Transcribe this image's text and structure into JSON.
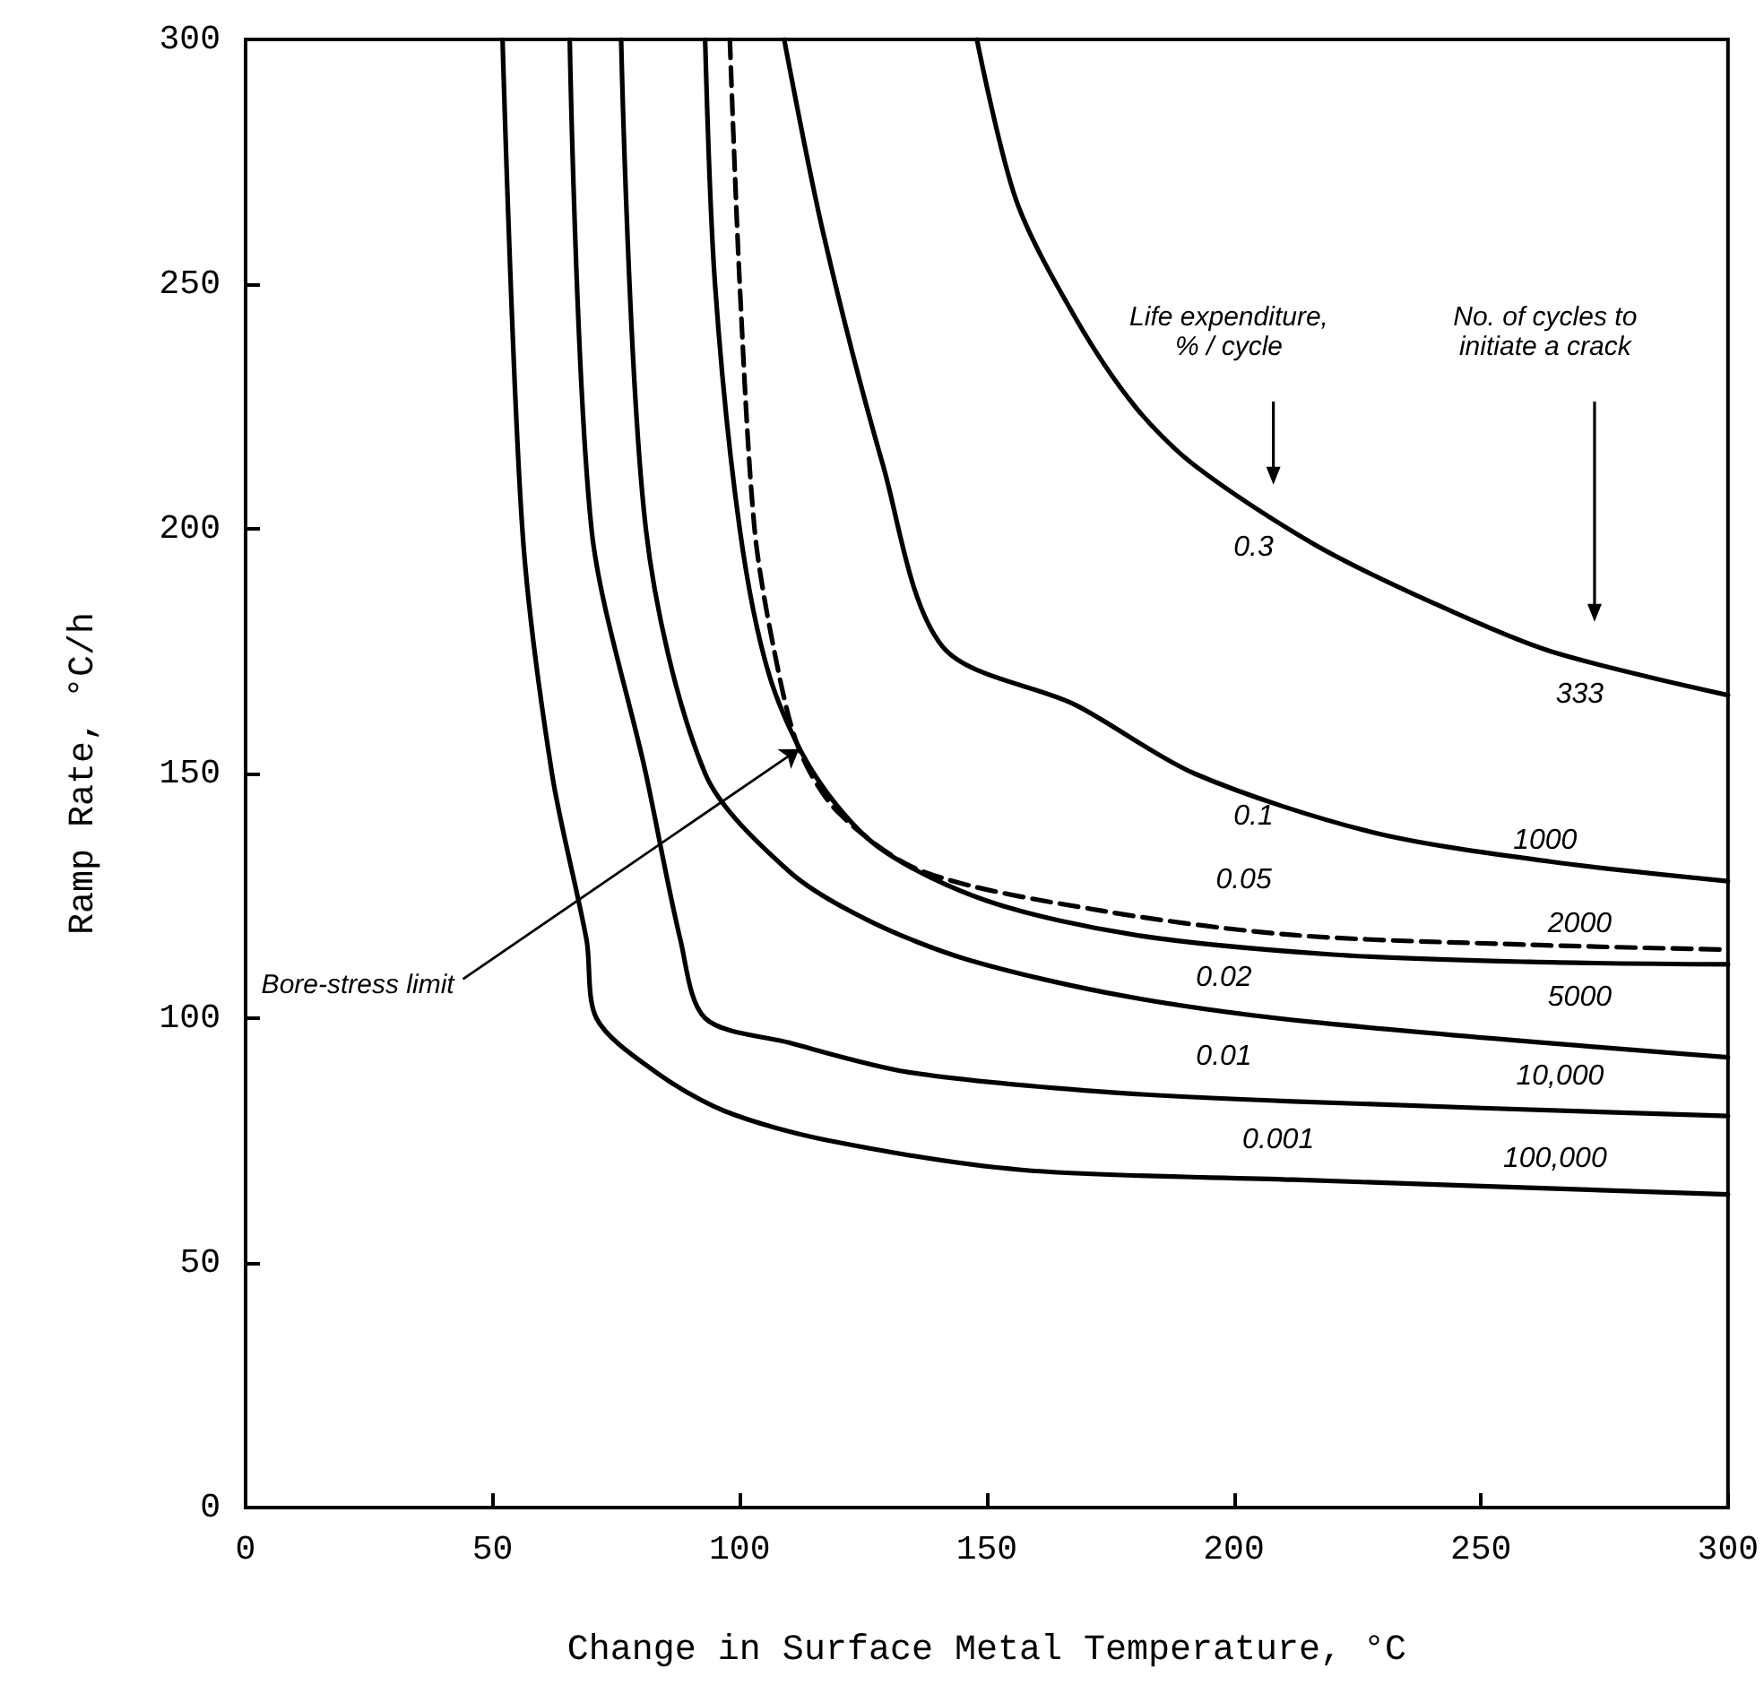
{
  "chart_data": {
    "type": "line",
    "xlabel": "Change in Surface Metal Temperature, °C",
    "ylabel": "Ramp Rate, °C/h",
    "xlim": [
      0,
      300
    ],
    "ylim": [
      0,
      300
    ],
    "xticks": [
      0,
      50,
      100,
      150,
      200,
      250,
      300
    ],
    "yticks": [
      0,
      50,
      100,
      150,
      200,
      250,
      300
    ],
    "marker": "none",
    "line_style": "solid",
    "series": [
      {
        "color": "#000000",
        "x": [
          52,
          56,
          62,
          69,
          71,
          83,
          97,
          118,
          157,
          212,
          300
        ],
        "values": [
          300,
          200,
          150,
          116,
          100,
          89,
          81,
          75,
          69,
          67,
          64
        ]
      },
      {
        "color": "#000000",
        "x": [
          65.6,
          70,
          81,
          88,
          93,
          110,
          134,
          173,
          212,
          300
        ],
        "values": [
          300,
          200,
          150,
          116,
          100,
          95,
          89,
          85,
          83,
          80
        ]
      },
      {
        "color": "#000000",
        "x": [
          76,
          81,
          93,
          110,
          126,
          146,
          178,
          218,
          300
        ],
        "values": [
          300,
          200,
          150,
          130,
          120,
          112,
          104.5,
          99,
          92
        ]
      },
      {
        "color": "#000000",
        "x": [
          93,
          95,
          100,
          106,
          115,
          128,
          150,
          180,
          220,
          260,
          300
        ],
        "values": [
          300,
          250,
          200,
          170,
          150,
          135,
          124,
          117,
          113,
          111.5,
          111
        ]
      },
      {
        "color": "#000000",
        "line_style": "dashed",
        "x": [
          98,
          100,
          103,
          107,
          112,
          120,
          137,
          173,
          212,
          260,
          300
        ],
        "values": [
          300,
          250,
          200,
          175,
          155,
          142,
          130,
          122,
          117,
          115,
          114
        ]
      },
      {
        "color": "#000000",
        "x": [
          109,
          117,
          129,
          141,
          168,
          192,
          228,
          264,
          300
        ],
        "values": [
          300,
          260,
          213,
          176,
          164,
          150,
          138,
          132,
          128
        ]
      },
      {
        "color": "#000000",
        "x": [
          148,
          156,
          168,
          180,
          192,
          216,
          240,
          264,
          300
        ],
        "values": [
          300,
          267,
          243,
          225,
          213,
          197,
          185,
          175,
          166
        ]
      }
    ],
    "annotations": [
      "0.3",
      "333",
      "0.1",
      "1000",
      "0.05",
      "2000",
      "0.02",
      "5000",
      "0.01",
      "10,000",
      "0.001",
      "100,000",
      "Life expenditure,\n% / cycle",
      "No. of cycles to\ninitiate a crack",
      {
        "text": "Bore-stress limit",
        "x": 112,
        "y": 155
      }
    ]
  }
}
